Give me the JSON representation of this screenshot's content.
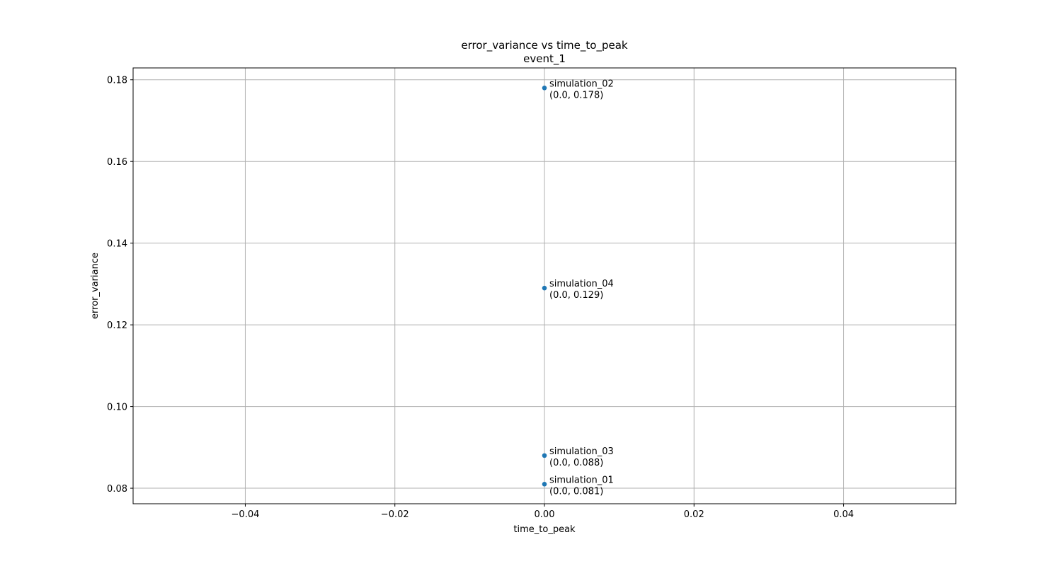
{
  "chart_data": {
    "type": "scatter",
    "title": "error_variance vs time_to_peak",
    "subtitle": "event_1",
    "xlabel": "time_to_peak",
    "ylabel": "error_variance",
    "xlim": [
      -0.055,
      0.055
    ],
    "ylim": [
      0.0762,
      0.1829
    ],
    "xticks": [
      -0.04,
      -0.02,
      0.0,
      0.02,
      0.04
    ],
    "xtick_labels": [
      "−0.04",
      "−0.02",
      "0.00",
      "0.02",
      "0.04"
    ],
    "yticks": [
      0.08,
      0.1,
      0.12,
      0.14,
      0.16,
      0.18
    ],
    "ytick_labels": [
      "0.08",
      "0.10",
      "0.12",
      "0.14",
      "0.16",
      "0.18"
    ],
    "grid": true,
    "marker_color": "#1f77b4",
    "points": [
      {
        "name": "simulation_02",
        "x": 0.0,
        "y": 0.178,
        "label": "(0.0, 0.178)"
      },
      {
        "name": "simulation_04",
        "x": 0.0,
        "y": 0.129,
        "label": "(0.0, 0.129)"
      },
      {
        "name": "simulation_03",
        "x": 0.0,
        "y": 0.088,
        "label": "(0.0, 0.088)"
      },
      {
        "name": "simulation_01",
        "x": 0.0,
        "y": 0.081,
        "label": "(0.0, 0.081)"
      }
    ]
  }
}
